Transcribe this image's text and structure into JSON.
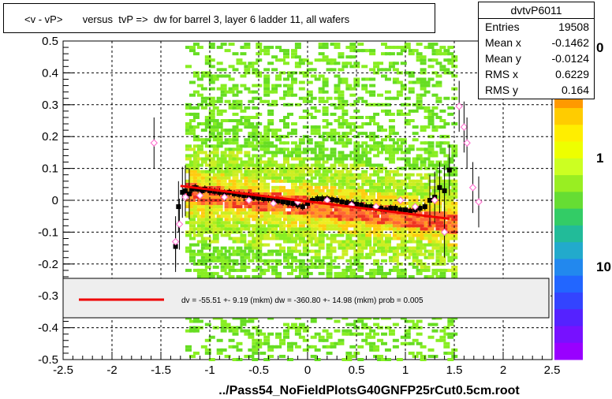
{
  "title": "<v - vP>       versus  tvP =>  dw for barrel 3, layer 6 ladder 11, all wafers",
  "stats": {
    "name": "dvtvP6011",
    "rows": [
      {
        "label": "Entries",
        "value": "19508"
      },
      {
        "label": "Mean x",
        "value": "-0.1462"
      },
      {
        "label": "Mean y",
        "value": "-0.0124"
      },
      {
        "label": "RMS x",
        "value": "0.6229"
      },
      {
        "label": "RMS y",
        "value": "0.164"
      }
    ]
  },
  "fit_legend": "dv =  -55.51 +-  9.19 (mkm) dw = -360.80 +- 14.98 (mkm) prob = 0.005",
  "footer": "../Pass54_NoFieldPlotsG40GNFP25rCut0.5cm.root",
  "colors": {
    "profile_points": "#000000",
    "open_markers": "#ff66cc",
    "fit_line": "#ee0000",
    "frame": "#000000"
  },
  "palette_labels": [
    "0",
    "1",
    "10"
  ],
  "chart_data": {
    "type": "scatter",
    "title": "<v - vP>       versus  tvP =>  dw for barrel 3, layer 6 ladder 11, all wafers",
    "xlabel": "",
    "ylabel": "",
    "xlim": [
      -2.5,
      2.5
    ],
    "ylim": [
      -0.5,
      0.5
    ],
    "x_ticks": [
      "-2.5",
      "-2",
      "-1.5",
      "-1",
      "-0.5",
      "0",
      "0.5",
      "1",
      "1.5",
      "2",
      "2.5"
    ],
    "y_ticks": [
      "-0.5",
      "-0.4",
      "-0.3",
      "-0.2",
      "-0.1",
      "0",
      "0.1",
      "0.2",
      "0.3",
      "0.4",
      "0.5"
    ],
    "grid": true,
    "legend_position": "bottom-center",
    "heatmap_x_range": [
      -1.25,
      1.5
    ],
    "series": [
      {
        "name": "profile",
        "points": [
          [
            -1.35,
            -0.145
          ],
          [
            -1.32,
            -0.02
          ],
          [
            -1.28,
            0.025
          ],
          [
            -1.25,
            0.03
          ],
          [
            -1.21,
            0.02
          ],
          [
            -1.18,
            0.035
          ],
          [
            -1.15,
            0.04
          ],
          [
            -1.12,
            0.035
          ],
          [
            -1.08,
            0.03
          ],
          [
            -1.05,
            0.035
          ],
          [
            -1.0,
            0.03
          ],
          [
            -0.95,
            0.028
          ],
          [
            -0.9,
            0.025
          ],
          [
            -0.85,
            0.022
          ],
          [
            -0.8,
            0.025
          ],
          [
            -0.75,
            0.02
          ],
          [
            -0.7,
            0.018
          ],
          [
            -0.65,
            0.015
          ],
          [
            -0.6,
            0.015
          ],
          [
            -0.55,
            0.01
          ],
          [
            -0.5,
            0.008
          ],
          [
            -0.45,
            0.005
          ],
          [
            -0.4,
            0.005
          ],
          [
            -0.35,
            0.0
          ],
          [
            -0.3,
            -0.002
          ],
          [
            -0.25,
            -0.005
          ],
          [
            -0.2,
            -0.008
          ],
          [
            -0.15,
            -0.01
          ],
          [
            -0.1,
            -0.015
          ],
          [
            -0.05,
            -0.02
          ],
          [
            0.0,
            -0.01
          ],
          [
            0.05,
            0.0
          ],
          [
            0.1,
            0.005
          ],
          [
            0.15,
            0.005
          ],
          [
            0.2,
            0.005
          ],
          [
            0.25,
            0.002
          ],
          [
            0.3,
            0.0
          ],
          [
            0.35,
            -0.005
          ],
          [
            0.4,
            -0.008
          ],
          [
            0.45,
            -0.01
          ],
          [
            0.5,
            -0.012
          ],
          [
            0.55,
            -0.015
          ],
          [
            0.6,
            -0.02
          ],
          [
            0.65,
            -0.02
          ],
          [
            0.7,
            -0.025
          ],
          [
            0.75,
            -0.025
          ],
          [
            0.8,
            -0.03
          ],
          [
            0.85,
            -0.025
          ],
          [
            0.9,
            -0.025
          ],
          [
            0.95,
            -0.03
          ],
          [
            1.0,
            -0.03
          ],
          [
            1.05,
            -0.035
          ],
          [
            1.1,
            -0.03
          ],
          [
            1.15,
            -0.025
          ],
          [
            1.2,
            -0.02
          ],
          [
            1.25,
            0.0
          ],
          [
            1.3,
            0.01
          ],
          [
            1.35,
            0.04
          ],
          [
            1.4,
            0.03
          ],
          [
            1.45,
            0.095
          ]
        ]
      },
      {
        "name": "open",
        "points": [
          [
            -1.57,
            0.18
          ],
          [
            -1.35,
            -0.13
          ],
          [
            -1.31,
            -0.075
          ],
          [
            -1.25,
            0.01
          ],
          [
            -1.1,
            0.015
          ],
          [
            -0.85,
            0.01
          ],
          [
            -0.6,
            0.0
          ],
          [
            -0.35,
            -0.01
          ],
          [
            -0.1,
            -0.005
          ],
          [
            0.2,
            0.0
          ],
          [
            0.45,
            -0.015
          ],
          [
            0.7,
            -0.02
          ],
          [
            0.95,
            0.0
          ],
          [
            1.1,
            -0.02
          ],
          [
            1.3,
            0.0
          ],
          [
            1.4,
            -0.1
          ],
          [
            1.55,
            0.295
          ],
          [
            1.6,
            0.23
          ],
          [
            1.63,
            0.18
          ],
          [
            1.69,
            0.04
          ],
          [
            1.75,
            -0.005
          ]
        ]
      }
    ],
    "fit_line": {
      "x": [
        -1.3,
        1.45
      ],
      "y": [
        0.045,
        -0.058
      ]
    }
  }
}
